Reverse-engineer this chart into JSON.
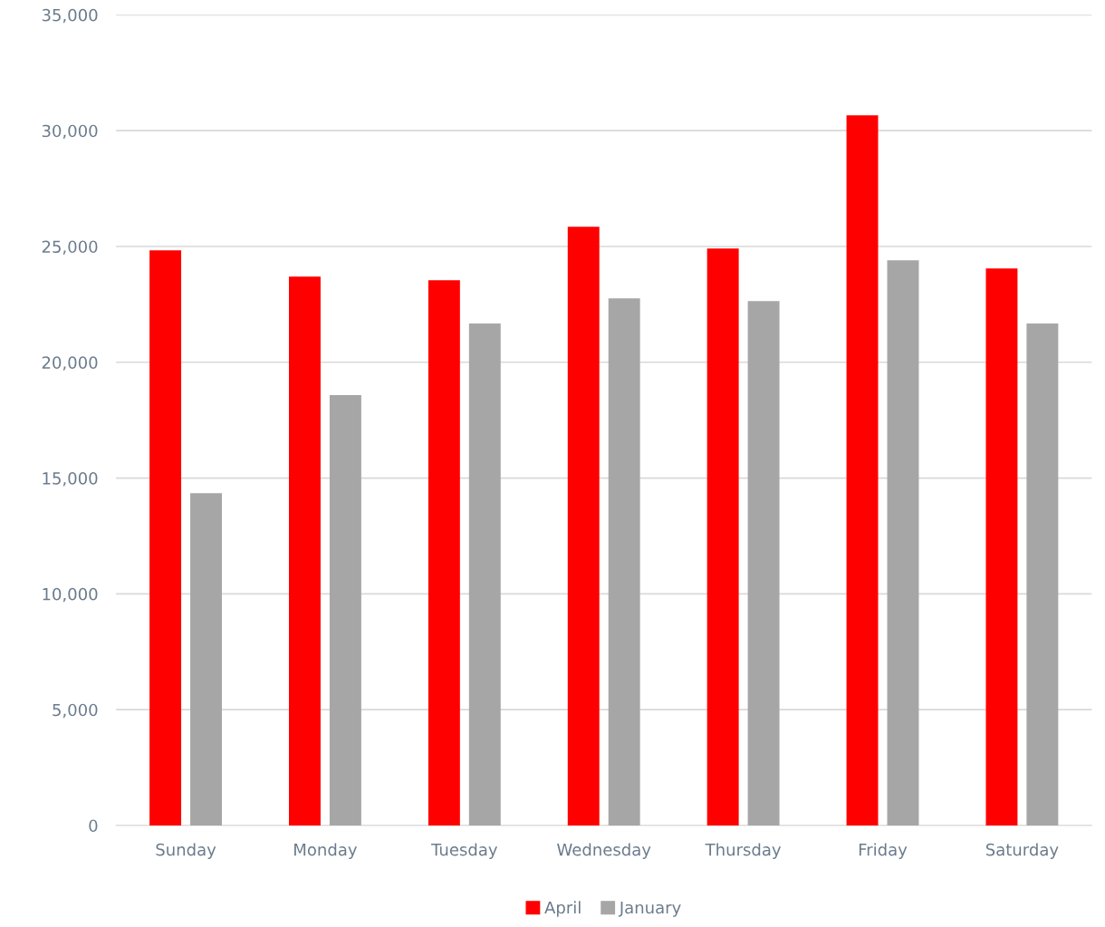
{
  "chart_data": {
    "type": "bar",
    "categories": [
      "Sunday",
      "Monday",
      "Tuesday",
      "Wednesday",
      "Thursday",
      "Friday",
      "Saturday"
    ],
    "series": [
      {
        "name": "April",
        "color": "#ff0000",
        "values": [
          24830,
          23700,
          23540,
          25850,
          24910,
          30660,
          24050
        ]
      },
      {
        "name": "January",
        "color": "#a6a6a6",
        "values": [
          14350,
          18580,
          21670,
          22760,
          22640,
          24400,
          21670
        ]
      }
    ],
    "ylim": [
      0,
      35000
    ],
    "yticks": [
      {
        "value": 0,
        "label": "0"
      },
      {
        "value": 5000,
        "label": "5,000"
      },
      {
        "value": 10000,
        "label": "10,000"
      },
      {
        "value": 15000,
        "label": "15,000"
      },
      {
        "value": 20000,
        "label": "20,000"
      },
      {
        "value": 25000,
        "label": "25,000"
      },
      {
        "value": 30000,
        "label": "30,000"
      },
      {
        "value": 35000,
        "label": "35,000"
      }
    ],
    "grid": "y",
    "legend": "bottom"
  }
}
